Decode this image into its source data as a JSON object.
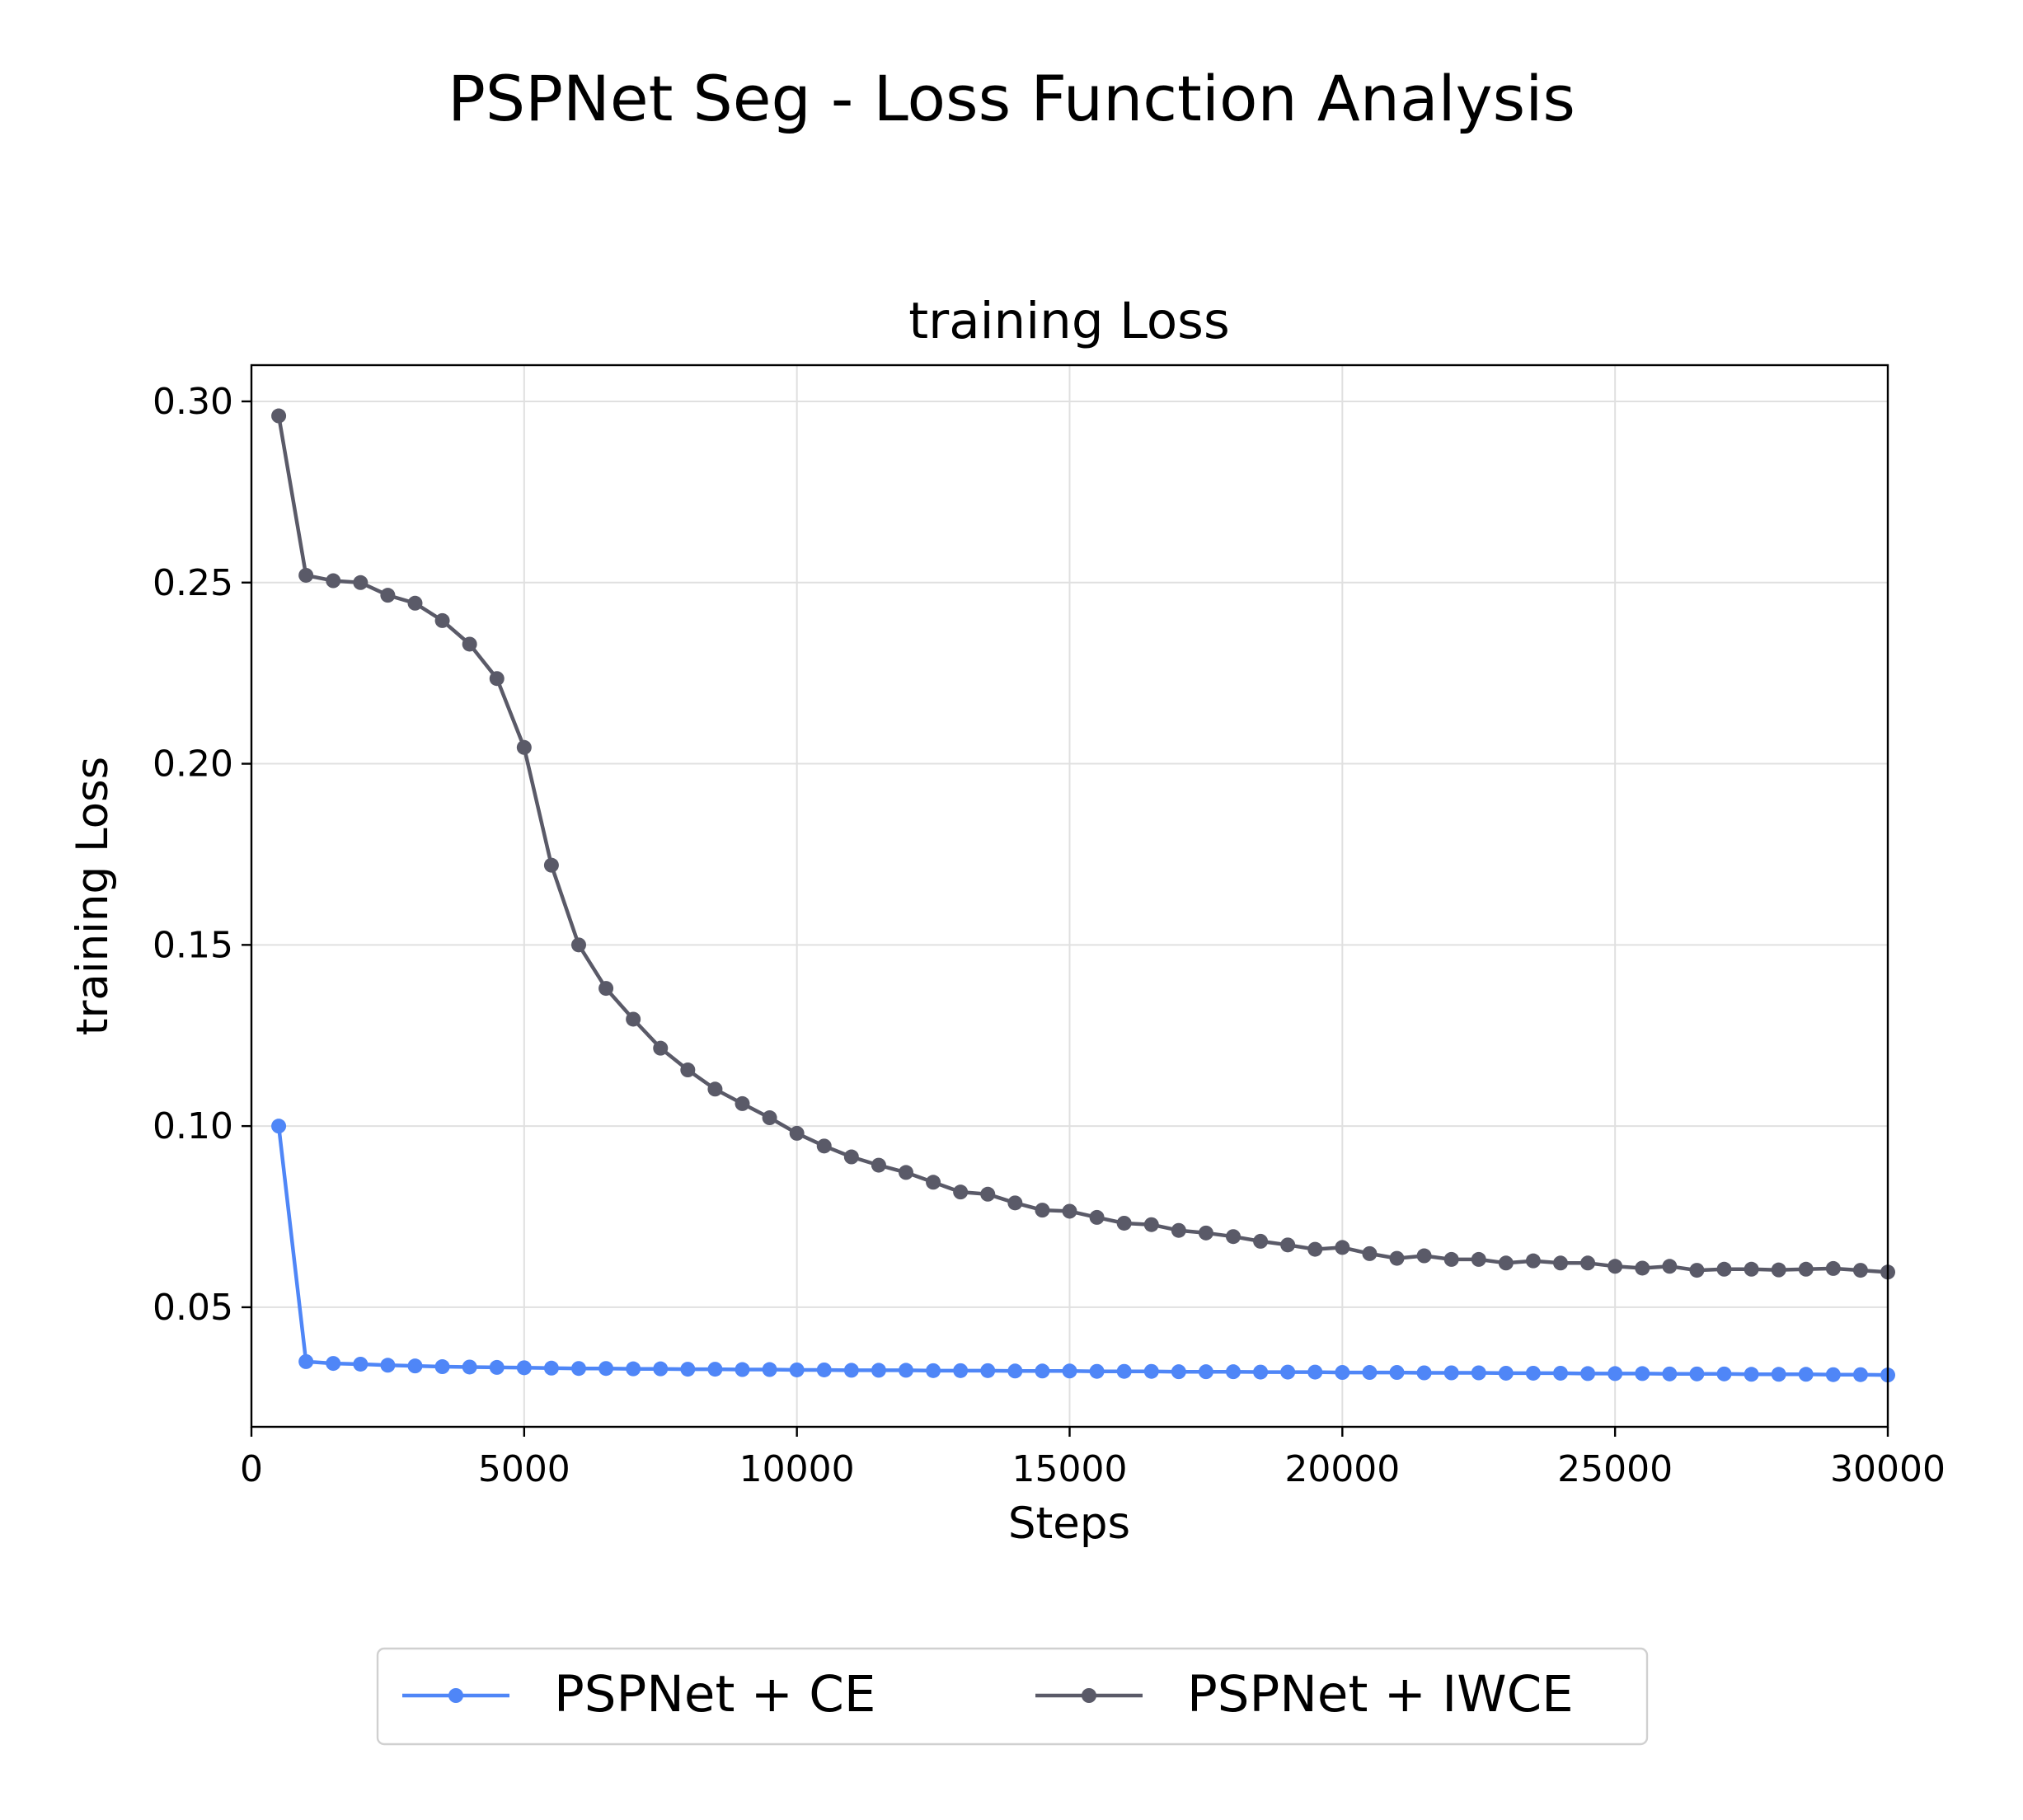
{
  "figure": {
    "suptitle": "PSPNet Seg - Loss Function Analysis"
  },
  "chart_data": {
    "type": "line",
    "title": "training Loss",
    "xlabel": "Steps",
    "ylabel": "training Loss",
    "xlim": [
      0,
      30000
    ],
    "ylim": [
      0.017,
      0.31
    ],
    "xticks": [
      0,
      5000,
      10000,
      15000,
      20000,
      25000,
      30000
    ],
    "xtick_labels": [
      "0",
      "5000",
      "10000",
      "15000",
      "20000",
      "25000",
      "30000"
    ],
    "yticks": [
      0.05,
      0.1,
      0.15,
      0.2,
      0.25,
      0.3
    ],
    "ytick_labels": [
      "0.05",
      "0.10",
      "0.15",
      "0.20",
      "0.25",
      "0.30"
    ],
    "grid": true,
    "legend_position": "bottom-center, below plot",
    "x": [
      500,
      1000,
      1500,
      2000,
      2500,
      3000,
      3500,
      4000,
      4500,
      5000,
      5500,
      6000,
      6500,
      7000,
      7500,
      8000,
      8500,
      9000,
      9500,
      10000,
      10500,
      11000,
      11500,
      12000,
      12500,
      13000,
      13500,
      14000,
      14500,
      15000,
      15500,
      16000,
      16500,
      17000,
      17500,
      18000,
      18500,
      19000,
      19500,
      20000,
      20500,
      21000,
      21500,
      22000,
      22500,
      23000,
      23500,
      24000,
      24500,
      25000,
      25500,
      26000,
      26500,
      27000,
      27500,
      28000,
      28500,
      29000,
      29500,
      30000
    ],
    "series": [
      {
        "name": "PSPNet + CE",
        "color": "#4f86f7",
        "values": [
          0.1,
          0.035,
          0.0345,
          0.0343,
          0.034,
          0.0338,
          0.0336,
          0.0335,
          0.0334,
          0.0333,
          0.0332,
          0.0331,
          0.0331,
          0.033,
          0.033,
          0.0329,
          0.0329,
          0.0328,
          0.0328,
          0.0327,
          0.0327,
          0.0326,
          0.0326,
          0.0326,
          0.0325,
          0.0325,
          0.0325,
          0.0324,
          0.0324,
          0.0324,
          0.0323,
          0.0323,
          0.0323,
          0.0322,
          0.0322,
          0.0322,
          0.0321,
          0.0321,
          0.0321,
          0.032,
          0.032,
          0.032,
          0.0319,
          0.0319,
          0.0319,
          0.0318,
          0.0318,
          0.0318,
          0.0317,
          0.0317,
          0.0317,
          0.0316,
          0.0316,
          0.0316,
          0.0315,
          0.0315,
          0.0315,
          0.0314,
          0.0314,
          0.0313
        ]
      },
      {
        "name": "PSPNet + IWCE",
        "color": "#5a5a68",
        "values": [
          0.296,
          0.252,
          0.2505,
          0.25,
          0.2465,
          0.2443,
          0.2395,
          0.233,
          0.2235,
          0.2045,
          0.172,
          0.15,
          0.138,
          0.1295,
          0.1215,
          0.1155,
          0.1102,
          0.1062,
          0.1023,
          0.098,
          0.0945,
          0.0915,
          0.0892,
          0.0872,
          0.0845,
          0.0818,
          0.0812,
          0.0788,
          0.0768,
          0.0765,
          0.0748,
          0.0732,
          0.0728,
          0.0712,
          0.0705,
          0.0695,
          0.0682,
          0.0672,
          0.066,
          0.0665,
          0.0648,
          0.0635,
          0.0642,
          0.0632,
          0.0632,
          0.0622,
          0.0628,
          0.0622,
          0.0622,
          0.0613,
          0.0608,
          0.0613,
          0.0602,
          0.0605,
          0.0605,
          0.0603,
          0.0605,
          0.0607,
          0.0602,
          0.0597
        ]
      }
    ]
  }
}
